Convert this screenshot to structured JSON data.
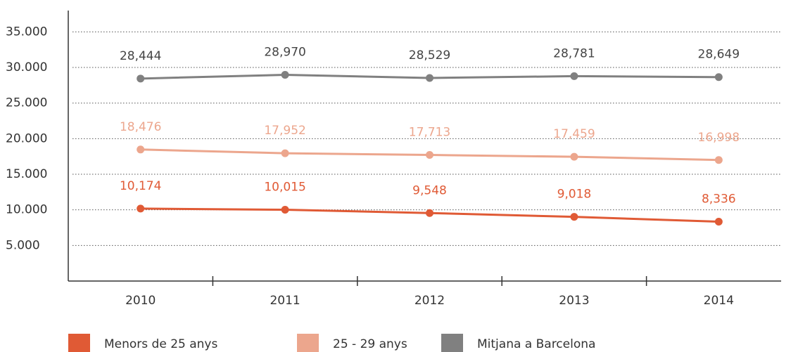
{
  "chart_data": {
    "type": "line",
    "categories": [
      "2010",
      "2011",
      "2012",
      "2013",
      "2014"
    ],
    "series": [
      {
        "name": "Menors de 25 anys",
        "color": "#e05a35",
        "values": [
          10174,
          10015,
          9548,
          9018,
          8336
        ],
        "value_labels": [
          "10,174",
          "10,015",
          "9,548",
          "9,018",
          "8,336"
        ]
      },
      {
        "name": "25 - 29 anys",
        "color": "#eca68d",
        "values": [
          18476,
          17952,
          17713,
          17459,
          16998
        ],
        "value_labels": [
          "18,476",
          "17,952",
          "17,713",
          "17,459",
          "16,998"
        ]
      },
      {
        "name": "Mitjana a Barcelona",
        "color": "#808080",
        "values": [
          28444,
          28970,
          28529,
          28781,
          28649
        ],
        "value_labels": [
          "28,444",
          "28,970",
          "28,529",
          "28,781",
          "28,649"
        ]
      }
    ],
    "ylim": [
      0,
      38000
    ],
    "yticks": [
      {
        "value": 5000,
        "label": "5.000"
      },
      {
        "value": 10000,
        "label": "10.000"
      },
      {
        "value": 15000,
        "label": "15.000"
      },
      {
        "value": 20000,
        "label": "20.000"
      },
      {
        "value": 25000,
        "label": "25.000"
      },
      {
        "value": 30000,
        "label": "30.000"
      },
      {
        "value": 35000,
        "label": "35.000"
      }
    ],
    "grid": true,
    "legend": "bottom"
  }
}
